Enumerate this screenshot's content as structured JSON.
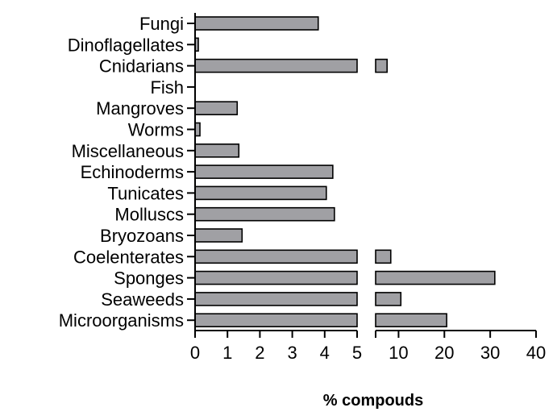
{
  "chart_data": {
    "type": "bar",
    "orientation": "horizontal",
    "categories": [
      "Fungi",
      "Dinoflagellates",
      "Cnidarians",
      "Fish",
      "Mangroves",
      "Worms",
      "Miscellaneous",
      "Echinoderms",
      "Tunicates",
      "Molluscs",
      "Bryozoans",
      "Coelenterates",
      "Sponges",
      "Seaweeds",
      "Microorganisms"
    ],
    "values": [
      3.8,
      0.1,
      7.5,
      0,
      1.3,
      0.15,
      1.35,
      4.25,
      4.05,
      4.3,
      1.45,
      8.3,
      31,
      10.5,
      20.5
    ],
    "xlabel": "% compouds",
    "xlim": [
      0,
      40
    ],
    "x_break": [
      5,
      5
    ],
    "x_ticks_left": [
      0,
      1,
      2,
      3,
      4,
      5
    ],
    "x_ticks_right": [
      10,
      20,
      30,
      40
    ],
    "bar_color": "#a0a0a4",
    "edge_color": "#000000",
    "grid": false,
    "legend": "none"
  }
}
